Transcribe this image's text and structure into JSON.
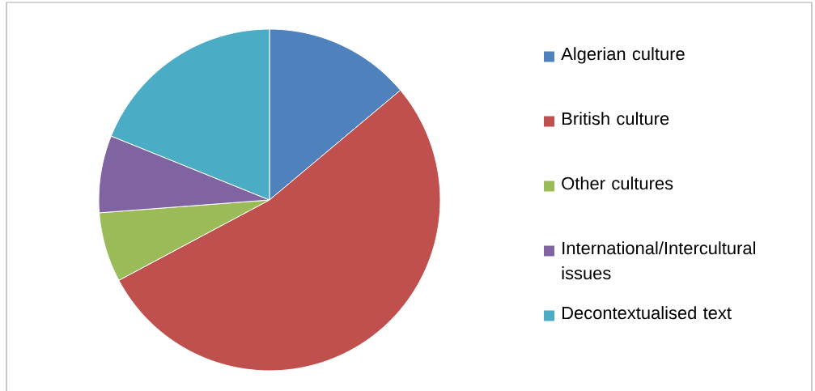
{
  "chart_data": {
    "type": "pie",
    "categories": [
      "Algerian culture",
      "British culture",
      "Other cultures",
      "International/Intercultural issues",
      "Decontextualised text"
    ],
    "values": [
      13.9,
      53.3,
      6.6,
      7.3,
      18.9
    ],
    "colors": [
      "#4f81bd",
      "#c0504d",
      "#9bbb59",
      "#8064a2",
      "#4bacc6"
    ],
    "legend": "right"
  }
}
